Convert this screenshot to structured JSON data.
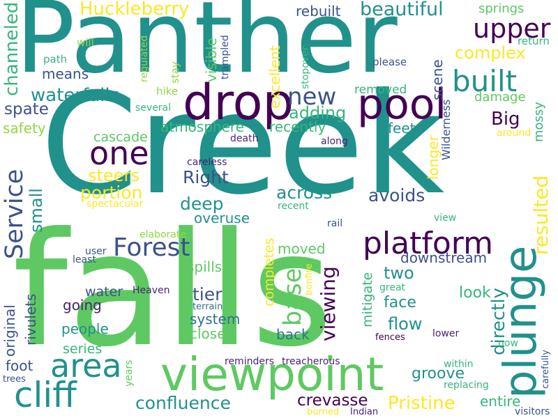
{
  "words": {
    "panther": "Panther",
    "creek": "Creek",
    "falls": "falls",
    "viewpoint": "viewpoint",
    "drop": "drop",
    "pool": "pool",
    "plunge": "plunge",
    "one": "one",
    "area": "area",
    "cliff": "cliff",
    "platform": "platform",
    "service": "Service",
    "forest": "Forest",
    "built": "built",
    "upper": "upper",
    "new": "new",
    "huckleberry": "Huckleberry",
    "waterfalls": "waterfalls",
    "channeled": "channeled",
    "beautiful": "beautiful",
    "complex": "complex",
    "resulted": "resulted",
    "big": "Big",
    "confluence": "confluence",
    "crevasse": "crevasse",
    "pristine": "Pristine",
    "base": "base",
    "viewing": "viewing",
    "directly": "directly",
    "avoids": "avoids",
    "across": "across",
    "deep": "deep",
    "right": "Right",
    "portion": "portion",
    "steers": "steers",
    "adding": "adding",
    "recently": "recently",
    "spate": "spate",
    "safety": "safety",
    "atmosphere": "atmosphere",
    "cascade": "cascade",
    "small": "small",
    "overuse": "overuse",
    "two": "two",
    "downstream": "downstream",
    "moved": "moved",
    "spills": "spills",
    "tier": "tier",
    "system": "system",
    "closer": "closer",
    "going": "going",
    "water": "water",
    "people": "people",
    "series": "series",
    "rivulets": "rivulets",
    "original": "original",
    "foot": "foot",
    "flow": "flow",
    "face": "face",
    "look": "look",
    "groove": "groove",
    "entire": "entire",
    "back": "back",
    "completes": "completes",
    "mitigate": "mitigate",
    "feet": "feet",
    "longer": "longer",
    "wilderness": "Wilderness",
    "mossy": "mossy",
    "damage": "damage",
    "removed": "removed",
    "scene": "scene",
    "excellent": "excellent",
    "visible": "visible",
    "means": "means",
    "rebuilt": "rebuilt",
    "springs": "springs",
    "will": "will",
    "path": "path",
    "regulated": "regulated",
    "hike": "hike",
    "stay": "stay",
    "trampled": "trampled",
    "stopover": "stopover",
    "please": "please",
    "return": "return",
    "several": "several",
    "around": "around",
    "death": "death",
    "along": "along",
    "careless": "careless",
    "recent": "recent",
    "spectacular": "spectacular",
    "rail": "rail",
    "view": "view",
    "elaborate": "elaborate",
    "user": "user",
    "least": "least",
    "bonfire": "bonfire",
    "great": "great",
    "heaven": "Heaven",
    "terrain": "terrain",
    "fences": "fences",
    "lower": "lower",
    "now": "now",
    "within": "within",
    "replacing": "replacing",
    "carefully": "carefully",
    "visitors": "visitors",
    "years": "years",
    "reminders": "reminders",
    "treacherous": "treacherous",
    "trees": "trees",
    "burned": "burned",
    "indian": "Indian"
  }
}
